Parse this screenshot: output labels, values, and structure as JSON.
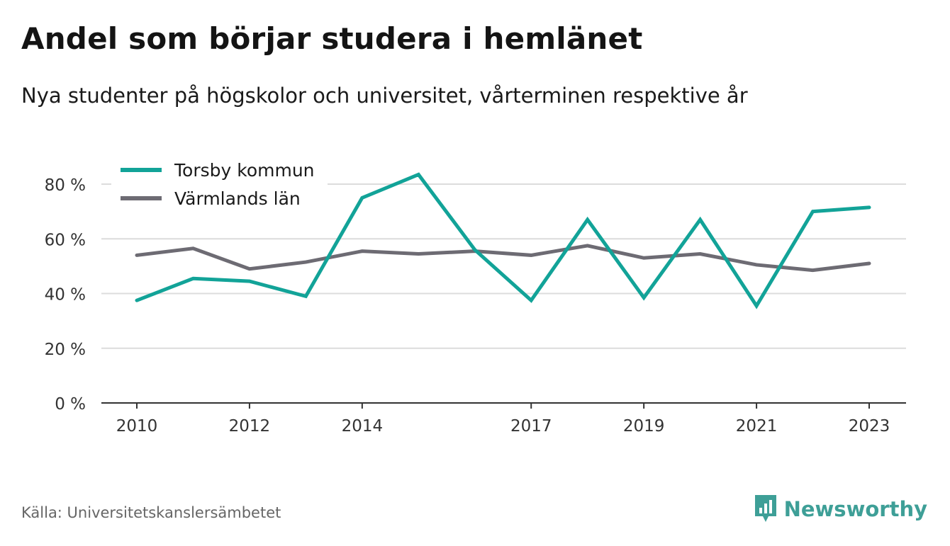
{
  "title": "Andel som börjar studera i hemlänet",
  "subtitle": "Nya studenter på högskolor och universitet, vårterminen respektive år",
  "source": "Källa: Universitetskanslersämbetet",
  "brand": {
    "name": "Newsworthy",
    "icon": "newsworthy-logo-icon",
    "color": "#3e9f97"
  },
  "chart_data": {
    "type": "line",
    "x": [
      2010,
      2011,
      2012,
      2013,
      2014,
      2015,
      2016,
      2017,
      2018,
      2019,
      2020,
      2021,
      2022,
      2023
    ],
    "x_ticks": [
      2010,
      2012,
      2014,
      2017,
      2019,
      2021,
      2023
    ],
    "x_tick_labels": [
      "2010",
      "2012",
      "2014",
      "2017",
      "2019",
      "2021",
      "2023"
    ],
    "ylim": [
      0,
      80
    ],
    "y_ticks": [
      0,
      20,
      40,
      60,
      80
    ],
    "y_tick_labels": [
      "0 %",
      "20 %",
      "40 %",
      "60 %",
      "80 %"
    ],
    "grid": true,
    "legend_position": "top-left",
    "series": [
      {
        "name": "Torsby kommun",
        "color": "#12a398",
        "values": [
          37.5,
          45.5,
          44.5,
          39,
          75,
          83.5,
          56,
          37.5,
          67,
          38.5,
          67,
          35.5,
          70,
          71.5
        ]
      },
      {
        "name": "Värmlands län",
        "color": "#6d6b73",
        "values": [
          54,
          56.5,
          49,
          51.5,
          55.5,
          54.5,
          55.5,
          54,
          57.5,
          53,
          54.5,
          50.5,
          48.5,
          51
        ]
      }
    ]
  }
}
